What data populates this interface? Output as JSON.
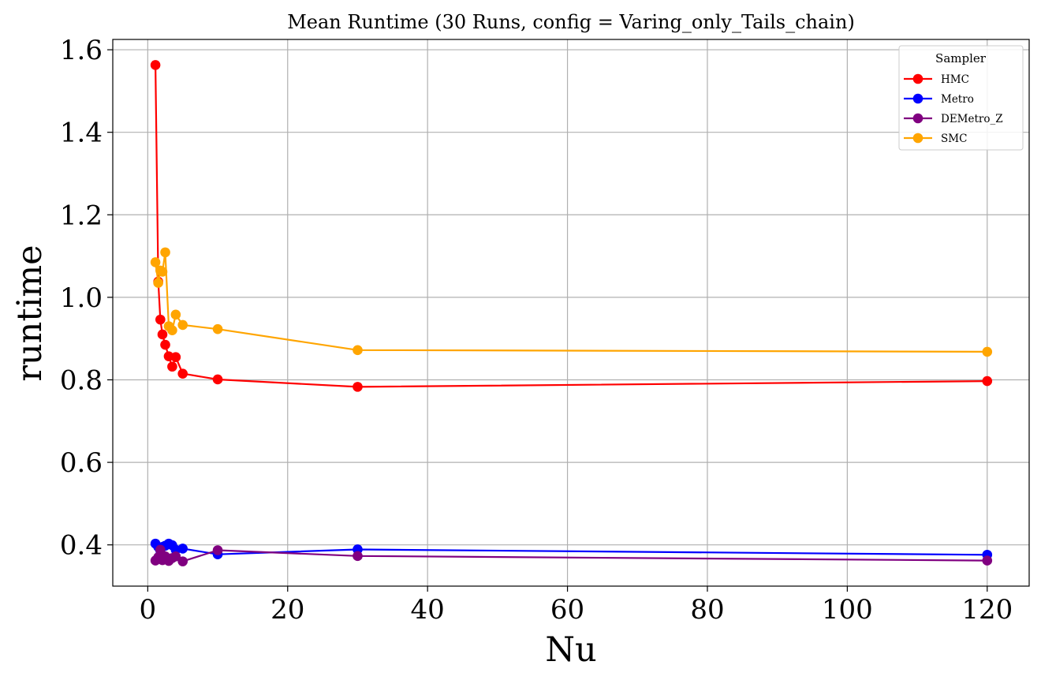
{
  "chart_data": {
    "type": "line",
    "title": "Mean Runtime (30 Runs, config = Varing_only_Tails_chain)",
    "xlabel": "Nu",
    "ylabel": "runtime",
    "xlim": [
      -5,
      126
    ],
    "ylim": [
      0.3,
      1.625
    ],
    "xticks": [
      0,
      20,
      40,
      60,
      80,
      100,
      120
    ],
    "yticks": [
      0.4,
      0.6,
      0.8,
      1.0,
      1.2,
      1.4,
      1.6
    ],
    "xtick_labels": [
      "0",
      "20",
      "40",
      "60",
      "80",
      "100",
      "120"
    ],
    "ytick_labels": [
      "0.4",
      "0.6",
      "0.8",
      "1.0",
      "1.2",
      "1.4",
      "1.6"
    ],
    "grid": true,
    "legend": {
      "title": "Sampler",
      "position": "top-right"
    },
    "series": [
      {
        "name": "HMC",
        "color": "#ff0000",
        "x": [
          1.1,
          1.5,
          1.8,
          2.1,
          2.5,
          3.0,
          3.5,
          4.0,
          5.0,
          10,
          30,
          120
        ],
        "y": [
          1.563,
          1.038,
          0.946,
          0.91,
          0.885,
          0.857,
          0.832,
          0.855,
          0.815,
          0.801,
          0.783,
          0.797
        ]
      },
      {
        "name": "Metro",
        "color": "#0000ff",
        "x": [
          1.1,
          1.5,
          1.8,
          2.1,
          2.5,
          3.0,
          3.5,
          4.0,
          5.0,
          10,
          30,
          120
        ],
        "y": [
          0.403,
          0.395,
          0.386,
          0.395,
          0.398,
          0.403,
          0.399,
          0.388,
          0.391,
          0.377,
          0.389,
          0.376
        ]
      },
      {
        "name": "DEMetro_Z",
        "color": "#800080",
        "x": [
          1.1,
          1.5,
          1.8,
          2.1,
          2.5,
          3.0,
          3.5,
          4.0,
          5.0,
          10,
          30,
          120
        ],
        "y": [
          0.362,
          0.37,
          0.388,
          0.363,
          0.372,
          0.361,
          0.368,
          0.372,
          0.36,
          0.387,
          0.373,
          0.362
        ]
      },
      {
        "name": "SMC",
        "color": "#ffa500",
        "x": [
          1.1,
          1.5,
          1.8,
          2.1,
          2.5,
          3.0,
          3.5,
          4.0,
          5.0,
          10,
          30,
          120
        ],
        "y": [
          1.085,
          1.035,
          1.065,
          1.062,
          1.109,
          0.93,
          0.92,
          0.958,
          0.933,
          0.923,
          0.872,
          0.868
        ]
      }
    ]
  }
}
